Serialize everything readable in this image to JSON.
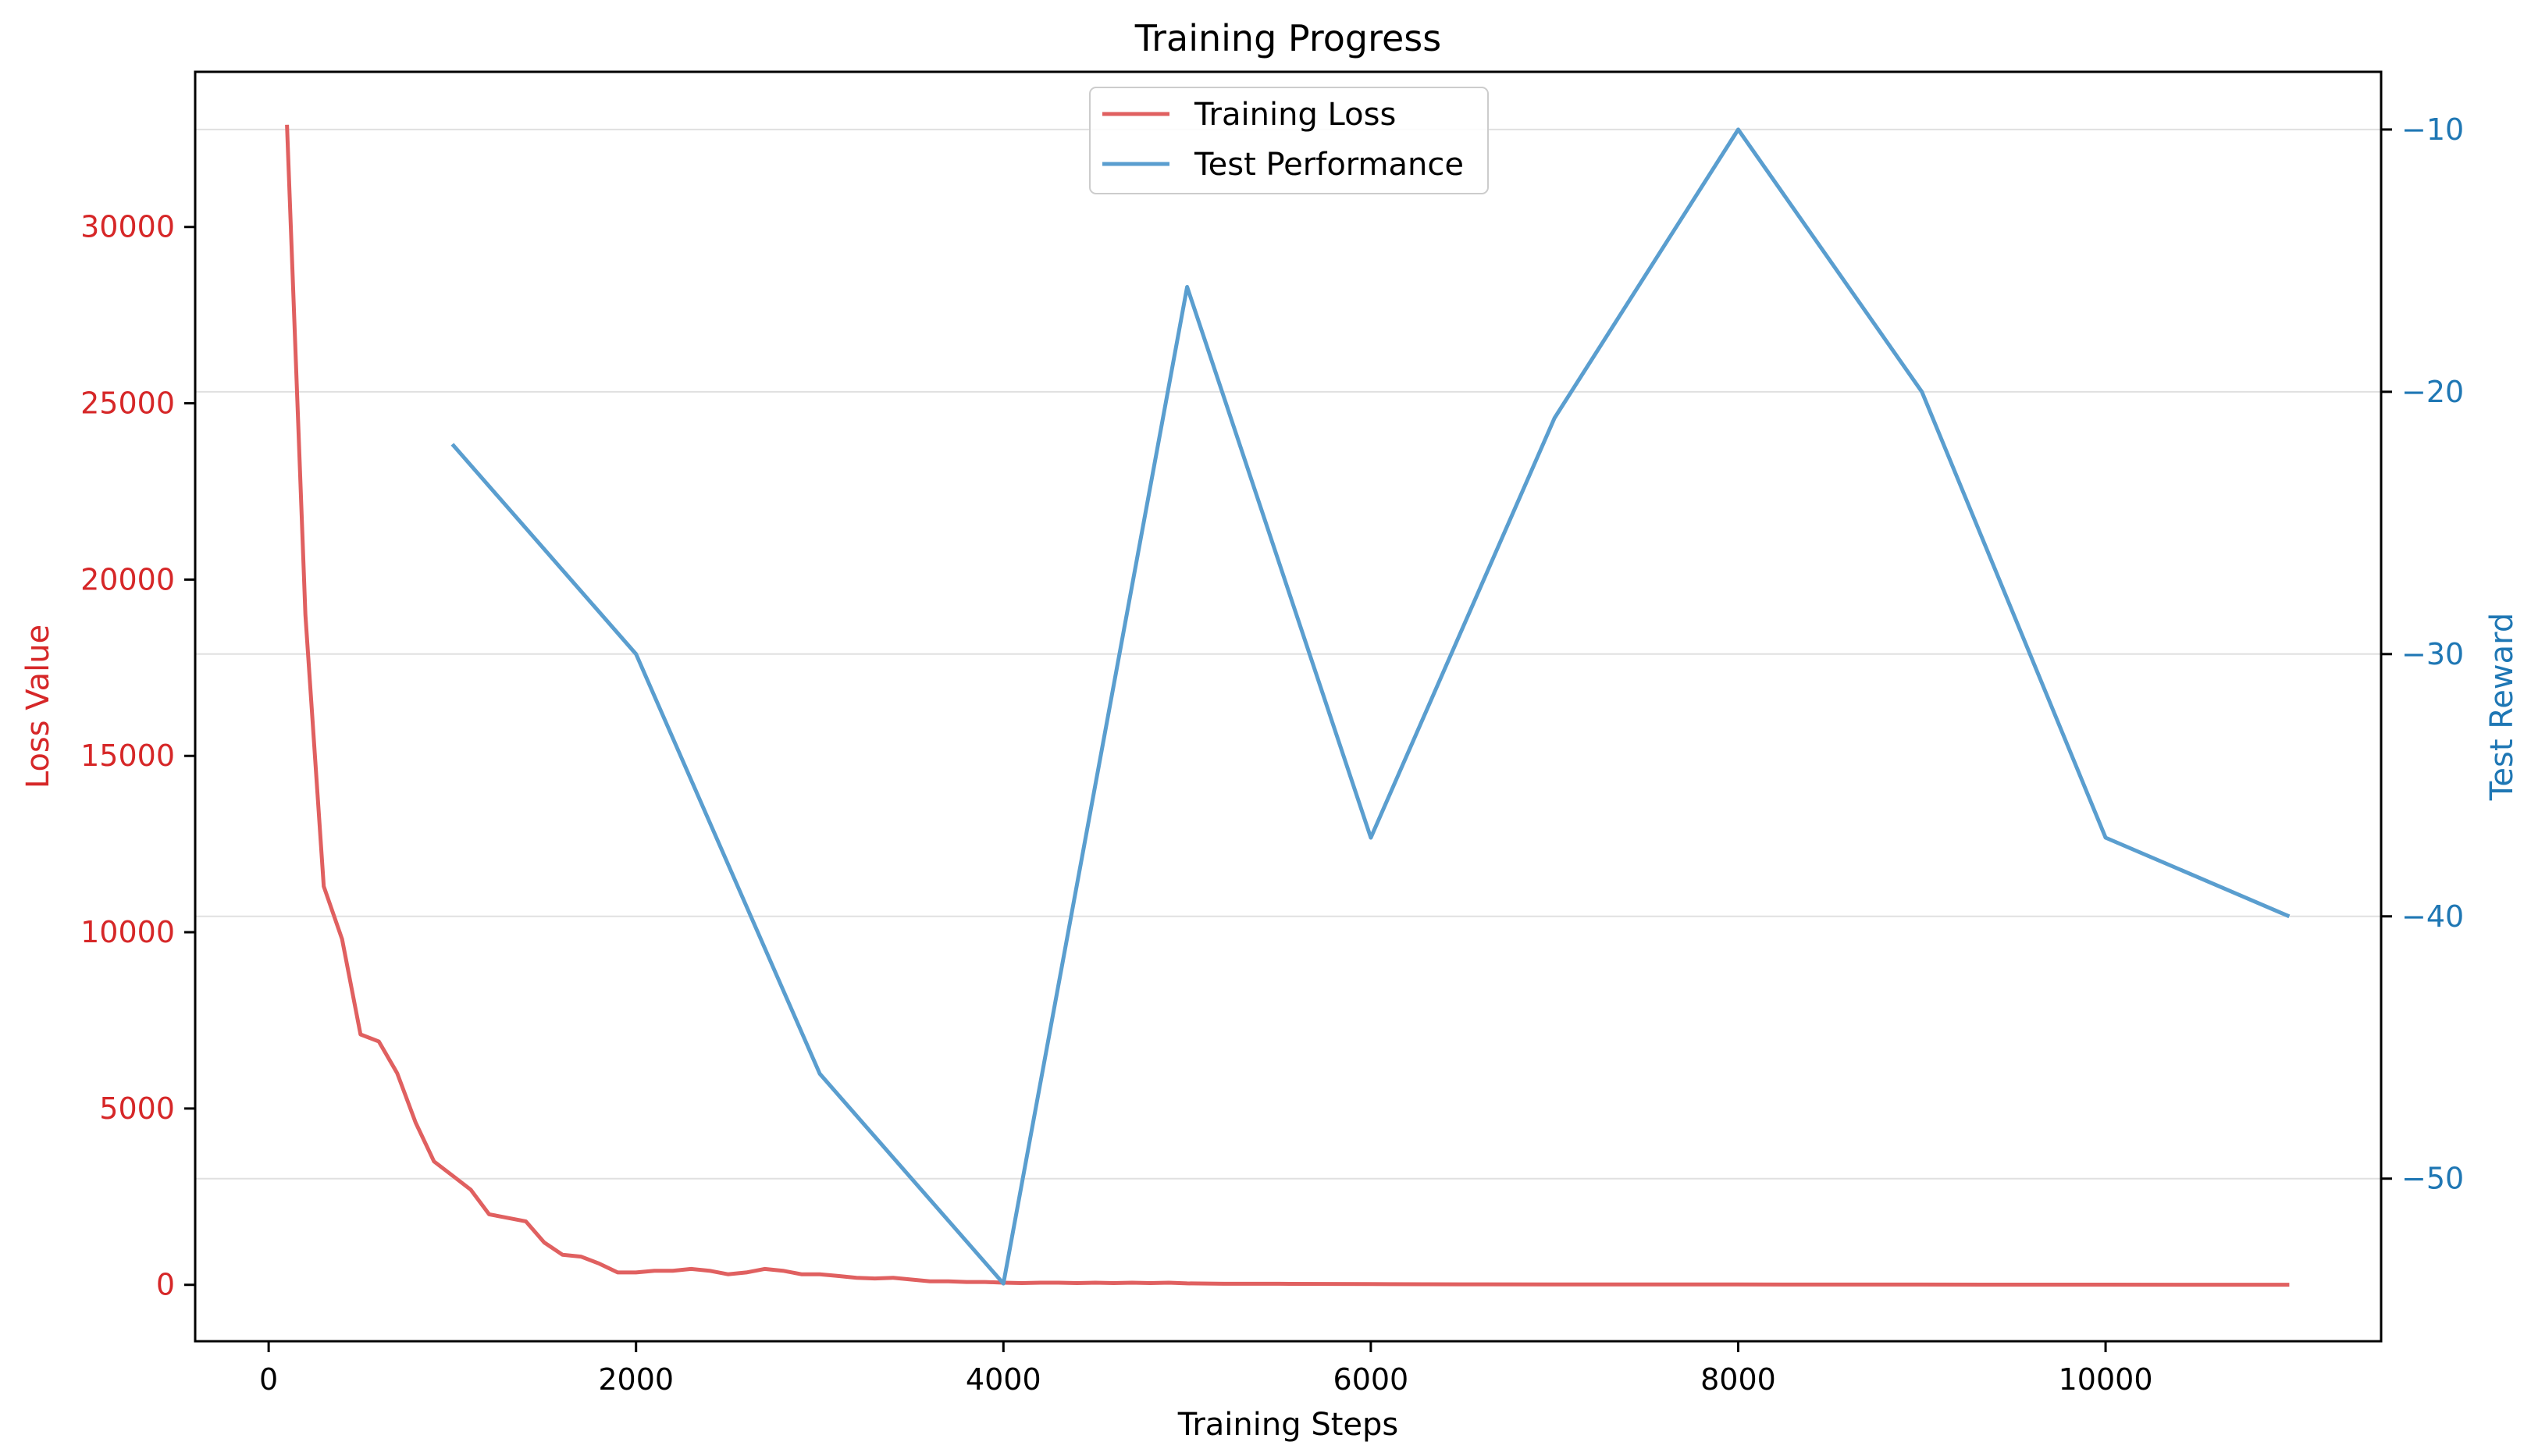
{
  "chart_data": {
    "type": "line",
    "title": "Training Progress",
    "xlabel": "Training Steps",
    "ylabel_left": "Loss Value",
    "ylabel_right": "Test Reward",
    "xlim": [
      -400,
      11500
    ],
    "ylim_left": [
      -1600,
      34400
    ],
    "ylim_right": [
      -56.2,
      -7.8
    ],
    "x_ticks": [
      0,
      2000,
      4000,
      6000,
      8000,
      10000
    ],
    "y_ticks_left": [
      0,
      5000,
      10000,
      15000,
      20000,
      25000,
      30000
    ],
    "y_ticks_right": [
      -10,
      -20,
      -30,
      -40,
      -50
    ],
    "grid": "horizontal, right axis",
    "legend_position": "upper center",
    "colors": {
      "loss": "#e06060",
      "loss_axis": "#d62728",
      "reward": "#5a9ecf",
      "reward_axis": "#1f77b4",
      "grid": "#e0e0e0"
    },
    "series": [
      {
        "name": "Training Loss",
        "axis": "left",
        "x": [
          100,
          200,
          300,
          400,
          500,
          600,
          700,
          800,
          900,
          1000,
          1100,
          1200,
          1300,
          1400,
          1500,
          1600,
          1700,
          1800,
          1900,
          2000,
          2100,
          2200,
          2300,
          2400,
          2500,
          2600,
          2700,
          2800,
          2900,
          3000,
          3100,
          3200,
          3300,
          3400,
          3500,
          3600,
          3700,
          3800,
          3900,
          4000,
          4100,
          4200,
          4300,
          4400,
          4500,
          4600,
          4700,
          4800,
          4900,
          5000,
          5200,
          5500,
          6000,
          6500,
          7000,
          7500,
          8000,
          8500,
          9000,
          9500,
          10000,
          10500,
          11000
        ],
        "y": [
          32900,
          19000,
          11300,
          9800,
          7100,
          6900,
          6000,
          4600,
          3500,
          3100,
          2700,
          2000,
          1900,
          1800,
          1200,
          850,
          800,
          600,
          350,
          350,
          400,
          400,
          450,
          400,
          300,
          350,
          450,
          400,
          300,
          300,
          250,
          200,
          180,
          200,
          150,
          100,
          100,
          80,
          80,
          60,
          50,
          60,
          60,
          50,
          60,
          50,
          60,
          50,
          60,
          40,
          30,
          30,
          20,
          15,
          10,
          10,
          10,
          8,
          8,
          6,
          5,
          4,
          3
        ]
      },
      {
        "name": "Test Performance",
        "axis": "right",
        "x": [
          1000,
          2000,
          3000,
          4000,
          5000,
          6000,
          7000,
          8000,
          9000,
          10000,
          11000
        ],
        "y": [
          -22,
          -30,
          -46,
          -54,
          -16,
          -37,
          -21,
          -10,
          -20,
          -37,
          -40
        ]
      }
    ]
  }
}
